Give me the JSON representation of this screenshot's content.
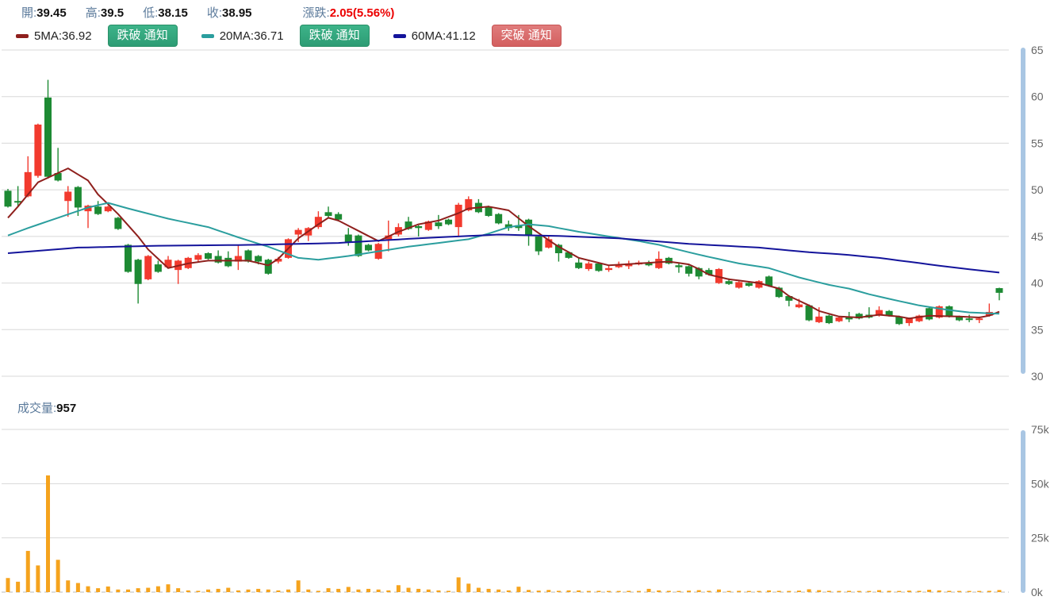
{
  "header": {
    "fields": [
      {
        "label": "開:",
        "value": "39.45"
      },
      {
        "label": "高:",
        "value": "39.5"
      },
      {
        "label": "低:",
        "value": "38.15"
      },
      {
        "label": "收:",
        "value": "38.95"
      }
    ],
    "change": {
      "label": "漲跌:",
      "value": "2.05(5.56%)",
      "color": "#ec0000"
    },
    "ma_legend": [
      {
        "swatch_color": "#8f201d",
        "label": "5MA:36.92",
        "button": {
          "text": "跌破 通知",
          "style": "green"
        }
      },
      {
        "swatch_color": "#2b9e9e",
        "label": "20MA:36.71",
        "button": {
          "text": "跌破 通知",
          "style": "green"
        }
      },
      {
        "swatch_color": "#14149b",
        "label": "60MA:41.12",
        "button": {
          "text": "突破 通知",
          "style": "red"
        }
      }
    ]
  },
  "volume_header": {
    "label": "成交量:",
    "value": "957"
  },
  "chart_data": {
    "type": "candlestick-with-volume",
    "price_axis": {
      "min": 30,
      "max": 65,
      "ticks": [
        65,
        60,
        55,
        50,
        45,
        40,
        35,
        30
      ]
    },
    "volume_axis": {
      "min": 0,
      "max": 75,
      "unit": "k",
      "ticks": [
        75,
        50,
        25,
        0
      ]
    },
    "colors": {
      "up": "#f23a2e",
      "down": "#1d8a33",
      "volume": "#f5a31d",
      "ma5": "#8f201d",
      "ma20": "#2b9e9e",
      "ma60": "#14149b",
      "grid": "#d8d8d8",
      "axis_text": "#666666",
      "scrollbar": "#a9c6e3"
    },
    "legend_position": "top-left",
    "grid": true,
    "candles_ohlc": [
      [
        49.9,
        50.1,
        48.1,
        48.2
      ],
      [
        48.8,
        50.4,
        48.2,
        48.7
      ],
      [
        49.3,
        53.6,
        49.2,
        51.9
      ],
      [
        51.5,
        57.1,
        51.3,
        57.0
      ],
      [
        59.9,
        61.8,
        51.2,
        51.4
      ],
      [
        51.8,
        54.5,
        50.9,
        51.0
      ],
      [
        48.8,
        50.4,
        47.1,
        49.8
      ],
      [
        50.3,
        50.4,
        47.2,
        48.1
      ],
      [
        47.7,
        48.4,
        45.9,
        48.3
      ],
      [
        48.2,
        48.8,
        47.3,
        47.4
      ],
      [
        47.7,
        48.3,
        47.6,
        48.2
      ],
      [
        47.0,
        47.1,
        45.7,
        45.8
      ],
      [
        44.1,
        44.2,
        41.1,
        41.2
      ],
      [
        42.5,
        42.6,
        37.8,
        39.9
      ],
      [
        40.4,
        43.0,
        40.3,
        42.9
      ],
      [
        42.0,
        42.4,
        41.1,
        41.2
      ],
      [
        41.7,
        42.9,
        41.6,
        42.5
      ],
      [
        41.4,
        42.5,
        39.9,
        42.4
      ],
      [
        41.6,
        42.8,
        41.5,
        42.7
      ],
      [
        42.5,
        43.2,
        42.3,
        43.0
      ],
      [
        43.2,
        43.3,
        42.5,
        42.6
      ],
      [
        42.9,
        43.5,
        42.1,
        42.2
      ],
      [
        42.7,
        43.4,
        41.7,
        41.8
      ],
      [
        42.3,
        44.1,
        41.4,
        42.9
      ],
      [
        43.5,
        43.6,
        42.2,
        42.3
      ],
      [
        42.9,
        43.0,
        42.0,
        42.3
      ],
      [
        42.5,
        42.6,
        40.9,
        41.0
      ],
      [
        42.3,
        42.8,
        42.1,
        42.6
      ],
      [
        42.7,
        44.8,
        42.6,
        44.7
      ],
      [
        45.2,
        45.9,
        44.4,
        45.7
      ],
      [
        45.1,
        46.0,
        44.5,
        45.9
      ],
      [
        46.0,
        47.7,
        45.8,
        47.1
      ],
      [
        47.6,
        48.2,
        46.9,
        47.2
      ],
      [
        47.4,
        47.6,
        46.6,
        46.8
      ],
      [
        45.2,
        45.9,
        44.0,
        44.4
      ],
      [
        45.1,
        45.2,
        42.8,
        42.9
      ],
      [
        44.1,
        44.2,
        43.4,
        43.5
      ],
      [
        42.6,
        44.3,
        42.5,
        44.2
      ],
      [
        44.7,
        46.7,
        43.4,
        45.1
      ],
      [
        45.2,
        46.4,
        45.0,
        46.0
      ],
      [
        46.6,
        47.1,
        45.7,
        45.8
      ],
      [
        46.1,
        46.2,
        45.0,
        45.9
      ],
      [
        45.7,
        46.7,
        45.6,
        46.6
      ],
      [
        46.5,
        47.3,
        45.8,
        46.1
      ],
      [
        46.8,
        46.9,
        46.2,
        46.3
      ],
      [
        46.0,
        48.6,
        45.0,
        48.4
      ],
      [
        47.8,
        49.3,
        47.7,
        49.0
      ],
      [
        48.6,
        49.0,
        47.5,
        47.6
      ],
      [
        48.2,
        48.3,
        47.1,
        47.2
      ],
      [
        47.4,
        47.5,
        46.3,
        46.4
      ],
      [
        46.3,
        46.7,
        45.6,
        45.9
      ],
      [
        46.2,
        47.3,
        45.6,
        45.9
      ],
      [
        46.8,
        46.9,
        44.0,
        45.2
      ],
      [
        45.0,
        45.1,
        43.0,
        43.4
      ],
      [
        43.8,
        45.0,
        43.7,
        44.7
      ],
      [
        44.1,
        44.2,
        42.3,
        43.2
      ],
      [
        43.3,
        43.4,
        42.6,
        42.7
      ],
      [
        42.2,
        42.7,
        41.5,
        41.6
      ],
      [
        41.5,
        42.3,
        41.3,
        42.1
      ],
      [
        42.1,
        42.2,
        41.2,
        41.3
      ],
      [
        41.4,
        41.9,
        41.2,
        41.6
      ],
      [
        41.7,
        42.3,
        41.6,
        41.9
      ],
      [
        41.8,
        42.4,
        41.5,
        42.1
      ],
      [
        42.0,
        42.4,
        41.9,
        42.2
      ],
      [
        42.2,
        42.4,
        41.8,
        41.9
      ],
      [
        41.6,
        43.4,
        41.5,
        42.6
      ],
      [
        42.7,
        42.8,
        42.0,
        42.1
      ],
      [
        41.9,
        42.1,
        41.1,
        41.7
      ],
      [
        41.8,
        41.9,
        40.7,
        41.0
      ],
      [
        41.6,
        41.7,
        40.4,
        40.7
      ],
      [
        41.4,
        41.6,
        40.8,
        40.9
      ],
      [
        40.0,
        41.6,
        39.9,
        41.5
      ],
      [
        40.2,
        40.5,
        39.8,
        39.9
      ],
      [
        39.5,
        40.2,
        39.4,
        40.1
      ],
      [
        40.0,
        40.2,
        39.6,
        39.7
      ],
      [
        39.5,
        40.3,
        39.4,
        40.2
      ],
      [
        40.7,
        40.8,
        39.6,
        39.7
      ],
      [
        39.5,
        39.6,
        38.4,
        38.5
      ],
      [
        38.6,
        38.7,
        37.5,
        38.1
      ],
      [
        37.4,
        38.3,
        37.3,
        37.7
      ],
      [
        37.6,
        37.7,
        35.9,
        36.0
      ],
      [
        35.8,
        37.4,
        35.7,
        36.4
      ],
      [
        36.5,
        36.6,
        35.6,
        35.7
      ],
      [
        35.9,
        36.4,
        35.8,
        36.3
      ],
      [
        36.3,
        36.9,
        35.8,
        36.1
      ],
      [
        36.7,
        36.8,
        36.1,
        36.2
      ],
      [
        36.6,
        37.4,
        36.2,
        36.3
      ],
      [
        36.5,
        37.5,
        36.4,
        37.1
      ],
      [
        37.0,
        37.1,
        36.4,
        36.5
      ],
      [
        36.4,
        36.5,
        35.5,
        35.6
      ],
      [
        35.7,
        36.3,
        35.4,
        36.2
      ],
      [
        35.9,
        36.6,
        35.8,
        36.5
      ],
      [
        37.3,
        37.4,
        36.0,
        36.1
      ],
      [
        36.3,
        37.6,
        36.2,
        37.5
      ],
      [
        37.5,
        37.6,
        36.3,
        36.4
      ],
      [
        36.4,
        36.5,
        35.9,
        36.0
      ],
      [
        36.2,
        36.6,
        35.8,
        36.1
      ],
      [
        36.1,
        36.4,
        35.7,
        36.2
      ],
      [
        36.5,
        37.8,
        36.4,
        36.9
      ],
      [
        39.45,
        39.5,
        38.15,
        38.95
      ]
    ],
    "volumes_k": [
      6.5,
      4.8,
      19,
      12.3,
      53.8,
      14.9,
      5.4,
      4.2,
      2.7,
      1.8,
      2.6,
      1.2,
      1.2,
      1.8,
      2.0,
      2.7,
      3.6,
      1.8,
      0.8,
      0.6,
      1.2,
      1.5,
      2.0,
      0.8,
      1.2,
      1.5,
      1.2,
      0.8,
      1.2,
      5.4,
      1.2,
      0.6,
      1.8,
      1.5,
      2.4,
      1.2,
      1.5,
      1.2,
      0.8,
      3.2,
      2.0,
      1.5,
      1.2,
      0.8,
      0.6,
      6.8,
      3.9,
      2.0,
      1.5,
      1.2,
      0.8,
      2.5,
      1.0,
      0.7,
      1.0,
      0.6,
      0.8,
      0.8,
      0.5,
      0.6,
      0.4,
      0.5,
      0.6,
      0.4,
      1.5,
      0.8,
      0.6,
      0.5,
      0.7,
      0.9,
      0.6,
      1.2,
      0.5,
      0.6,
      0.4,
      0.5,
      0.8,
      0.6,
      0.5,
      0.7,
      1.3,
      0.9,
      0.6,
      0.5,
      0.6,
      0.4,
      0.5,
      0.9,
      0.6,
      0.5,
      0.7,
      0.6,
      1.1,
      0.8,
      0.6,
      0.5,
      0.4,
      0.5,
      0.6,
      0.957
    ],
    "ma_lines": [
      {
        "name": "5MA",
        "end_value": 36.92,
        "color_key": "ma5",
        "points": [
          [
            0,
            47.0
          ],
          [
            1,
            48.2
          ],
          [
            3,
            50.8
          ],
          [
            6,
            52.3
          ],
          [
            8,
            51.0
          ],
          [
            9,
            49.5
          ],
          [
            11,
            47.4
          ],
          [
            13,
            45.0
          ],
          [
            14,
            43.6
          ],
          [
            15,
            42.6
          ],
          [
            16,
            41.6
          ],
          [
            18,
            42.1
          ],
          [
            20,
            42.4
          ],
          [
            24,
            42.4
          ],
          [
            26,
            41.9
          ],
          [
            27,
            42.6
          ],
          [
            29,
            44.8
          ],
          [
            31,
            46.3
          ],
          [
            32,
            47.0
          ],
          [
            33,
            46.7
          ],
          [
            37,
            44.5
          ],
          [
            39,
            45.5
          ],
          [
            41,
            46.3
          ],
          [
            43,
            46.7
          ],
          [
            45,
            47.5
          ],
          [
            46,
            48.0
          ],
          [
            48,
            48.2
          ],
          [
            50,
            47.8
          ],
          [
            52,
            46.1
          ],
          [
            54,
            44.6
          ],
          [
            55,
            43.9
          ],
          [
            57,
            42.7
          ],
          [
            60,
            41.9
          ],
          [
            63,
            42.1
          ],
          [
            66,
            42.3
          ],
          [
            68,
            42.0
          ],
          [
            69,
            41.5
          ],
          [
            70,
            40.9
          ],
          [
            72,
            40.4
          ],
          [
            75,
            40.0
          ],
          [
            77,
            39.4
          ],
          [
            78,
            38.6
          ],
          [
            80,
            37.6
          ],
          [
            81,
            37.0
          ],
          [
            83,
            36.4
          ],
          [
            85,
            36.3
          ],
          [
            87,
            36.6
          ],
          [
            89,
            36.4
          ],
          [
            90,
            36.2
          ],
          [
            92,
            36.5
          ],
          [
            95,
            36.4
          ],
          [
            97,
            36.3
          ],
          [
            98,
            36.5
          ],
          [
            99,
            36.92
          ]
        ]
      },
      {
        "name": "20MA",
        "end_value": 36.71,
        "color_key": "ma20",
        "points": [
          [
            0,
            45.1
          ],
          [
            2,
            45.9
          ],
          [
            5,
            47.0
          ],
          [
            8,
            48.1
          ],
          [
            10,
            48.6
          ],
          [
            12,
            48.0
          ],
          [
            16,
            46.9
          ],
          [
            20,
            46.0
          ],
          [
            23,
            44.9
          ],
          [
            26,
            43.9
          ],
          [
            29,
            42.7
          ],
          [
            31,
            42.5
          ],
          [
            34,
            42.9
          ],
          [
            37,
            43.4
          ],
          [
            40,
            43.9
          ],
          [
            43,
            44.3
          ],
          [
            46,
            44.7
          ],
          [
            48,
            45.3
          ],
          [
            50,
            46.0
          ],
          [
            52,
            46.3
          ],
          [
            54,
            46.1
          ],
          [
            57,
            45.5
          ],
          [
            60,
            45.0
          ],
          [
            63,
            44.5
          ],
          [
            65,
            44.1
          ],
          [
            68,
            43.3
          ],
          [
            70,
            42.8
          ],
          [
            73,
            42.1
          ],
          [
            76,
            41.6
          ],
          [
            79,
            40.6
          ],
          [
            82,
            39.8
          ],
          [
            84,
            39.4
          ],
          [
            86,
            38.8
          ],
          [
            88,
            38.3
          ],
          [
            91,
            37.6
          ],
          [
            94,
            37.1
          ],
          [
            96,
            36.85
          ],
          [
            99,
            36.71
          ]
        ]
      },
      {
        "name": "60MA",
        "end_value": 41.12,
        "color_key": "ma60",
        "points": [
          [
            0,
            43.2
          ],
          [
            7,
            43.8
          ],
          [
            15,
            44.0
          ],
          [
            25,
            44.1
          ],
          [
            33,
            44.3
          ],
          [
            41,
            44.8
          ],
          [
            49,
            45.2
          ],
          [
            55,
            45.05
          ],
          [
            61,
            44.8
          ],
          [
            68,
            44.2
          ],
          [
            75,
            43.8
          ],
          [
            80,
            43.3
          ],
          [
            83,
            43.1
          ],
          [
            87,
            42.7
          ],
          [
            92,
            42.0
          ],
          [
            95,
            41.6
          ],
          [
            99,
            41.12
          ]
        ]
      }
    ]
  }
}
